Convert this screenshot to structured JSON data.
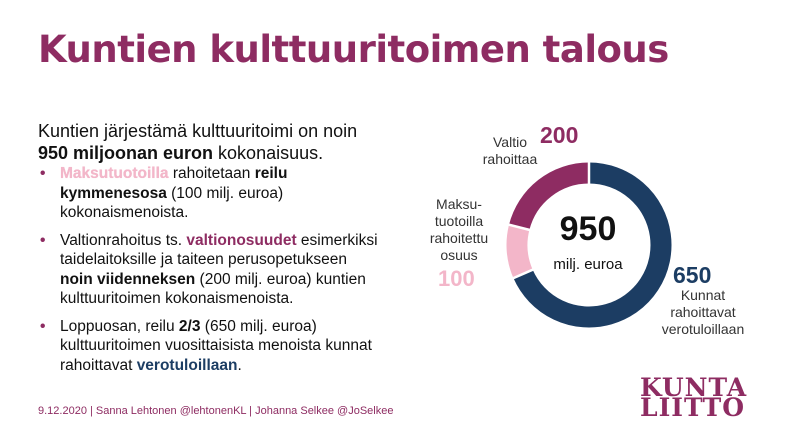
{
  "title": "Kuntien kulttuuritoimen talous",
  "intro": {
    "line1": "Kuntien järjestämä kulttuuritoimi on noin",
    "bold": "950 miljoonan euron",
    "rest": " kokonaisuus."
  },
  "bullets": [
    {
      "dot": "•",
      "parts": [
        {
          "text": "Maksutuotoilla",
          "style": "pink"
        },
        {
          "text": " rahoitetaan ",
          "style": "plain"
        },
        {
          "text": "reilu kymmenesosa",
          "style": "bold"
        },
        {
          "text": " (100 milj. euroa) kokonaismenoista.",
          "style": "plain"
        }
      ]
    },
    {
      "dot": "•",
      "parts": [
        {
          "text": "Valtionrahoitus ts. ",
          "style": "plain"
        },
        {
          "text": "valtionosuudet",
          "style": "purple"
        },
        {
          "text": " esimerkiksi taidelaitoksille ja taiteen perusopetukseen ",
          "style": "plain"
        },
        {
          "text": "noin viidenneksen",
          "style": "bold"
        },
        {
          "text": " (200 milj. euroa) kuntien kulttuuritoimen kokonaismenoista.",
          "style": "plain"
        }
      ]
    },
    {
      "dot": "•",
      "parts": [
        {
          "text": "Loppuosan, reilu ",
          "style": "plain"
        },
        {
          "text": "2/3",
          "style": "bold"
        },
        {
          "text": " (650 milj. euroa) kulttuuritoimen vuosittaisista menoista kunnat rahoittavat ",
          "style": "plain"
        },
        {
          "text": "verotuloillaan",
          "style": "navy"
        },
        {
          "text": ".",
          "style": "plain"
        }
      ]
    }
  ],
  "chart_data": {
    "type": "pie",
    "variant": "donut",
    "slices": [
      {
        "value": 650,
        "label": "Kunnat rahoittavat verotuloillaan",
        "color": "#1c3d63"
      },
      {
        "value": 100,
        "label": "Maksu- tuotoilla rahoitettu osuus",
        "color": "#f3b6c9"
      },
      {
        "value": 200,
        "label": "Valtio rahoittaa",
        "color": "#8e2c62"
      }
    ],
    "center_value": "950",
    "center_unit": "milj. euroa"
  },
  "labels": {
    "valtio_num": "200",
    "valtio_l1": "Valtio",
    "valtio_l2": "rahoittaa",
    "maksu_l1": "Maksu-",
    "maksu_l2": "tuotoilla",
    "maksu_l3": "rahoitettu",
    "maksu_l4": "osuus",
    "maksu_num": "100",
    "kunnat_num": "650",
    "kunnat_l1": "Kunnat",
    "kunnat_l2": "rahoittavat",
    "kunnat_l3": "verotuloillaan"
  },
  "footer": "9.12.2020 | Sanna Lehtonen @lehtonenKL | Johanna Selkee @JoSelkee",
  "logo": {
    "line1": "KUNTA",
    "line2": "LIITTO"
  },
  "colors": {
    "purple": "#8e2c62",
    "navy": "#1c3d63",
    "pink": "#f3b6c9"
  }
}
